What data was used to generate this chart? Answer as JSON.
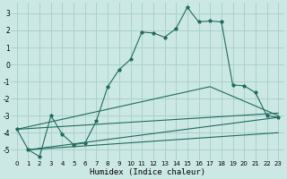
{
  "xlabel": "Humidex (Indice chaleur)",
  "bg_color": "#cce8e4",
  "grid_color": "#aad0cc",
  "line_color": "#1f6b5e",
  "xlim": [
    -0.5,
    23.5
  ],
  "ylim": [
    -5.6,
    3.6
  ],
  "yticks": [
    -5,
    -4,
    -3,
    -2,
    -1,
    0,
    1,
    2,
    3
  ],
  "xticks": [
    0,
    1,
    2,
    3,
    4,
    5,
    6,
    7,
    8,
    9,
    10,
    11,
    12,
    13,
    14,
    15,
    16,
    17,
    18,
    19,
    20,
    21,
    22,
    23
  ],
  "main_x": [
    0,
    1,
    2,
    3,
    4,
    5,
    6,
    7,
    8,
    9,
    10,
    11,
    12,
    13,
    14,
    15,
    16,
    17,
    18,
    19,
    20,
    21,
    22,
    23
  ],
  "main_y": [
    -3.8,
    -5.0,
    -5.4,
    -3.0,
    -4.1,
    -4.7,
    -4.6,
    -3.3,
    -1.3,
    -0.3,
    0.3,
    1.9,
    1.85,
    1.6,
    2.1,
    3.35,
    2.5,
    2.55,
    2.5,
    -1.2,
    -1.25,
    -1.65,
    -3.0,
    -3.1
  ],
  "line1_x": [
    1,
    23
  ],
  "line1_y": [
    -5.0,
    -3.1
  ],
  "line2_x": [
    1,
    23
  ],
  "line2_y": [
    -5.0,
    -4.0
  ],
  "line3_x": [
    0,
    23
  ],
  "line3_y": [
    -3.8,
    -2.85
  ],
  "line4_x": [
    0,
    17,
    23
  ],
  "line4_y": [
    -3.8,
    -1.3,
    -3.0
  ]
}
